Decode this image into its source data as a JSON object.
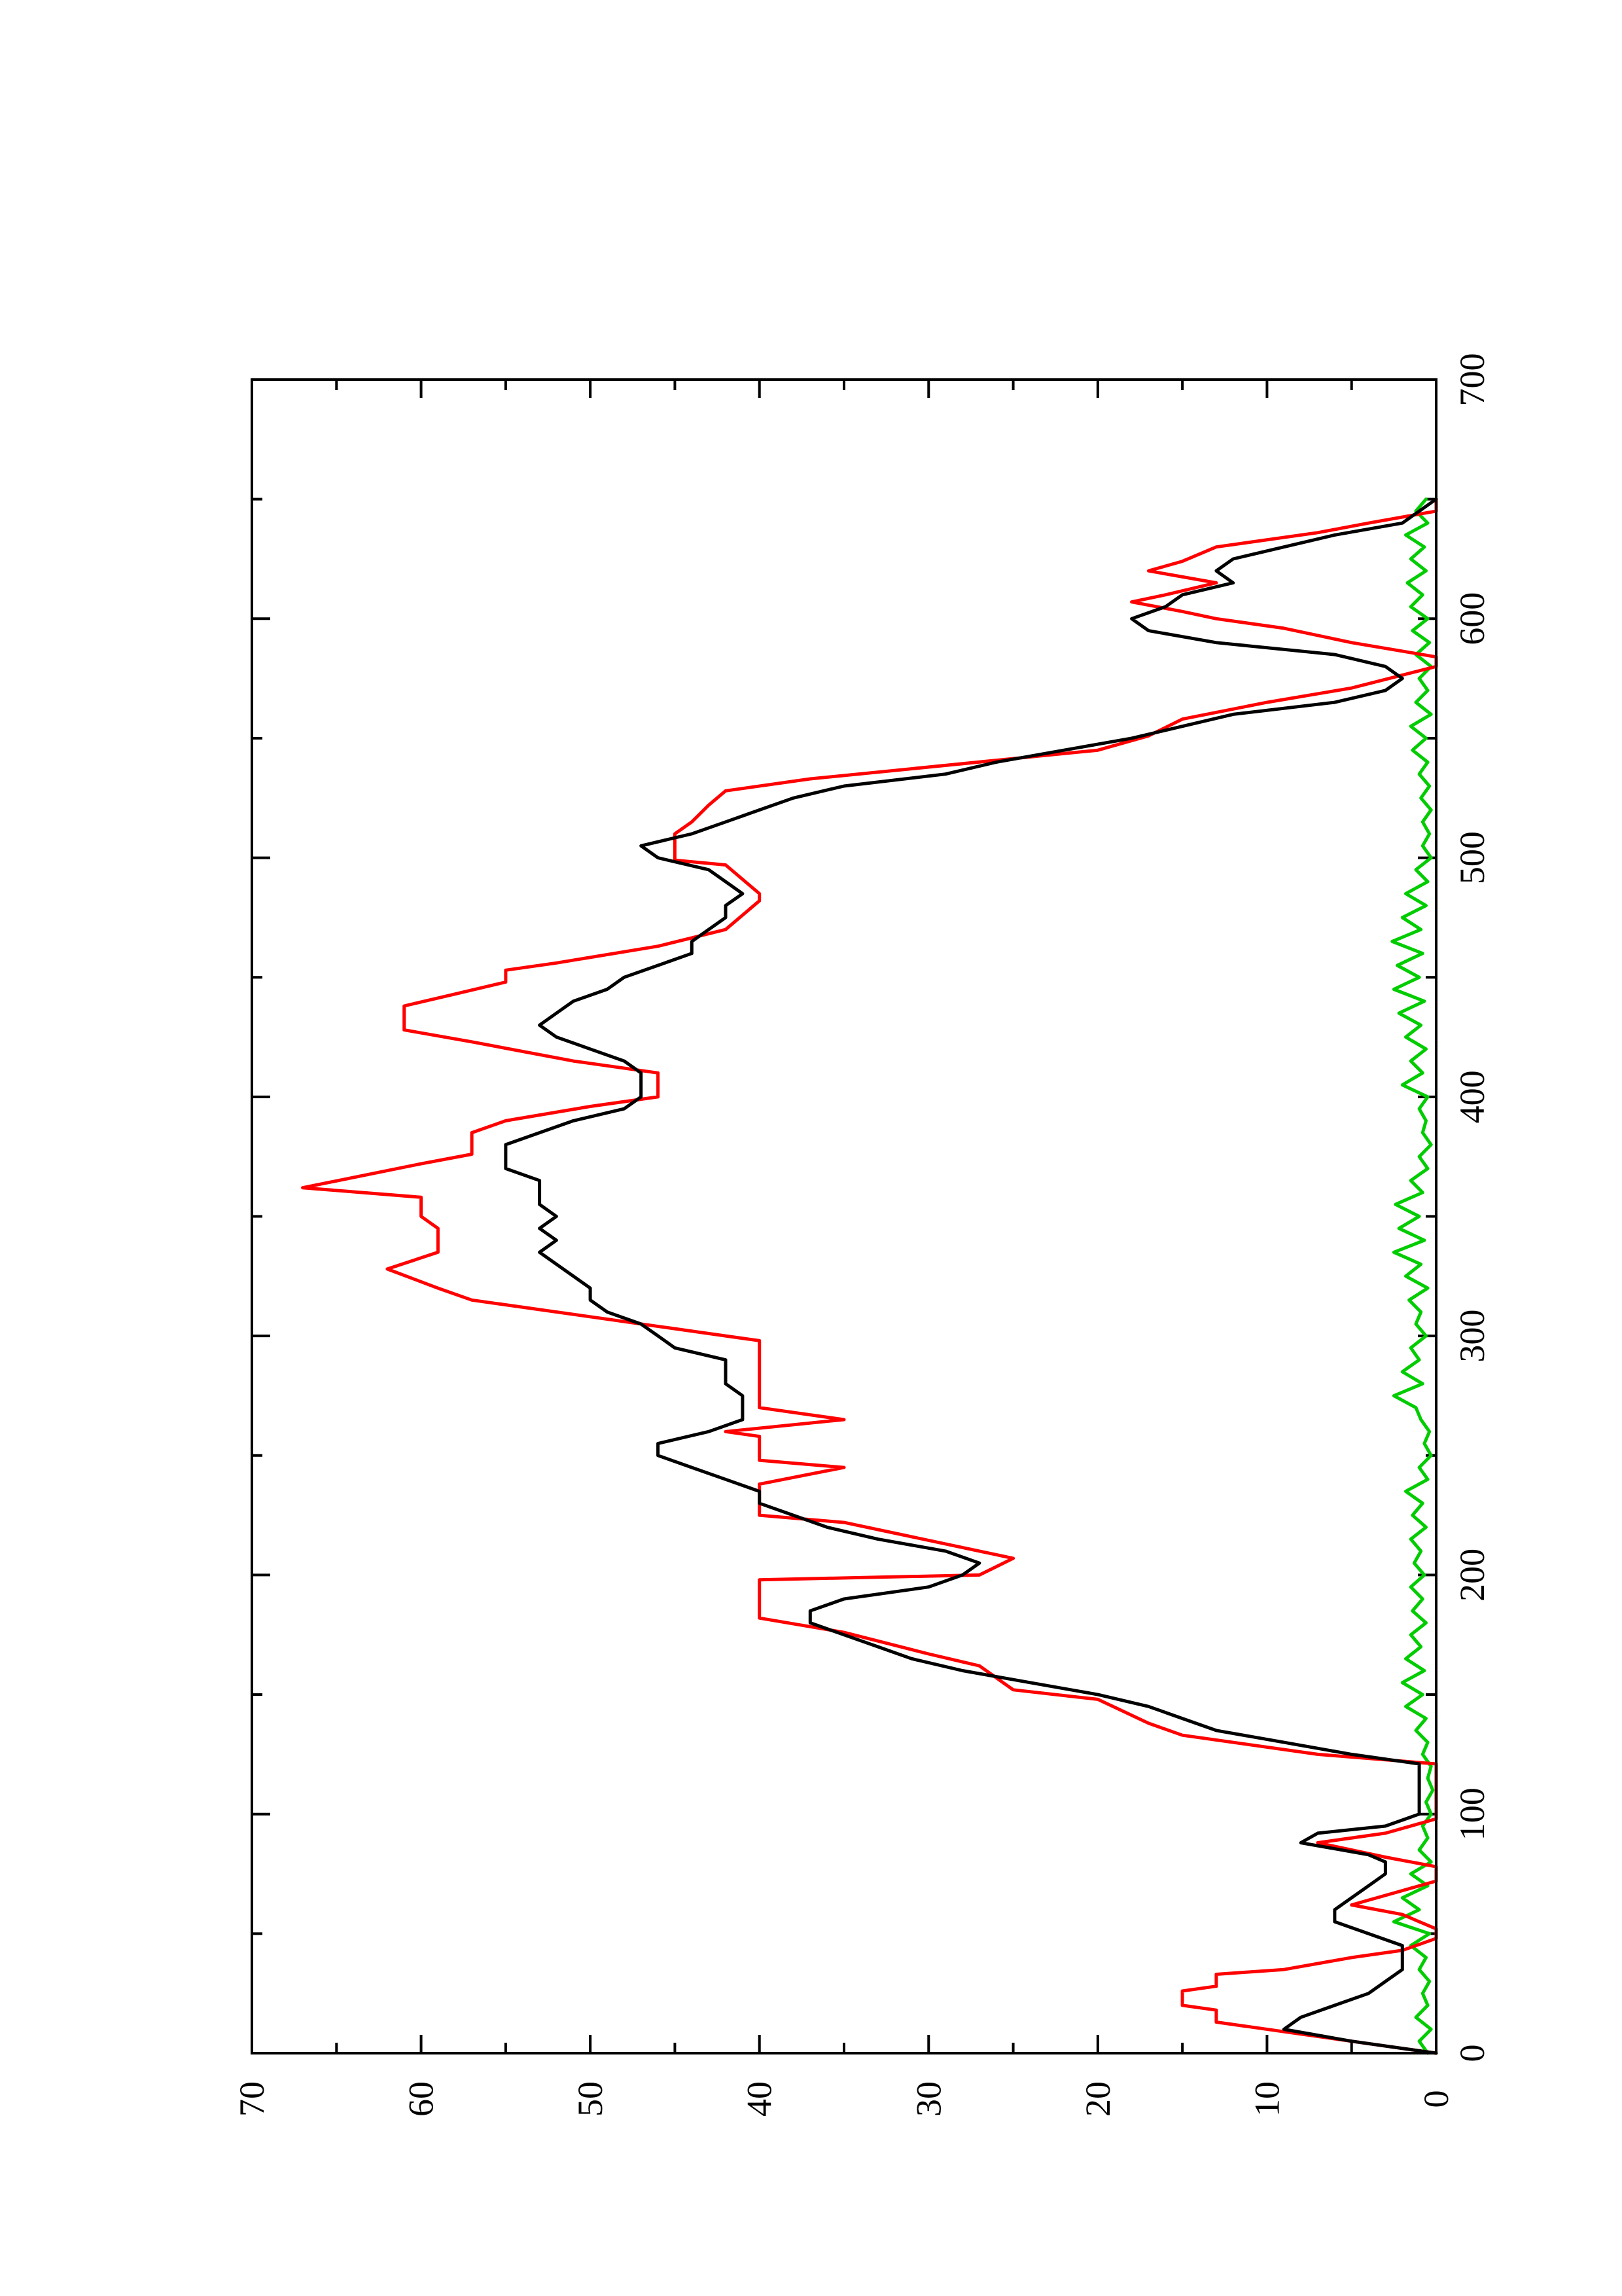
{
  "chart_data": {
    "type": "line",
    "orientation": "rotated-90-ccw",
    "title": "",
    "xlabel": "",
    "ylabel": "",
    "xlim": [
      0,
      700
    ],
    "ylim": [
      0,
      70
    ],
    "x_ticks": [
      0,
      100,
      200,
      300,
      400,
      500,
      600,
      700
    ],
    "x_tick_labels": [
      "0",
      "100",
      "200",
      "300",
      "400",
      "500",
      "600",
      "700"
    ],
    "x_minor_ticks": [
      50,
      150,
      250,
      350,
      450,
      550,
      650
    ],
    "y_ticks": [
      0,
      10,
      20,
      30,
      40,
      50,
      60,
      70
    ],
    "y_tick_labels": [
      "0",
      "10",
      "20",
      "30",
      "40",
      "50",
      "60",
      "70"
    ],
    "y_minor_ticks": [
      5,
      15,
      25,
      35,
      45,
      55,
      65
    ],
    "grid": false,
    "legend": "none",
    "series": [
      {
        "color": "#ff0000",
        "style": "step",
        "x": [
          0,
          8,
          13,
          18,
          20,
          26,
          28,
          33,
          35,
          40,
          43,
          48,
          52,
          58,
          62,
          68,
          72,
          78,
          82,
          88,
          92,
          98,
          100,
          121,
          125,
          133,
          138,
          148,
          152,
          162,
          167,
          176,
          182,
          198,
          200,
          207,
          210,
          222,
          225,
          235,
          238,
          245,
          248,
          258,
          260,
          265,
          270,
          275,
          280,
          295,
          298,
          315,
          320,
          328,
          335,
          345,
          350,
          358,
          362,
          372,
          376,
          385,
          390,
          396,
          400,
          410,
          415,
          423,
          428,
          434,
          438,
          443,
          448,
          453,
          456,
          463,
          470,
          482,
          485,
          497,
          499,
          505,
          510,
          515,
          522,
          528,
          533,
          545,
          551,
          558,
          565,
          571,
          580,
          584,
          590,
          596,
          600,
          603,
          607,
          610,
          615,
          620,
          624,
          630,
          636,
          640,
          645,
          650
        ],
        "y": [
          0,
          8,
          13,
          13,
          15,
          15,
          13,
          13,
          9,
          5,
          2,
          0,
          0,
          2,
          5,
          2,
          0,
          0,
          3,
          7,
          3,
          0,
          0,
          0,
          7,
          15,
          17,
          20,
          25,
          27,
          30,
          35,
          40,
          40,
          27,
          25,
          27,
          35,
          40,
          40,
          40,
          35,
          40,
          40,
          42,
          35,
          40,
          40,
          40,
          40,
          40,
          57,
          59,
          62,
          59,
          59,
          60,
          60,
          67,
          60,
          57,
          57,
          55,
          50,
          46,
          46,
          51,
          57,
          61,
          61,
          61,
          58,
          55,
          55,
          52,
          46,
          42,
          40,
          40,
          42,
          45,
          45,
          45,
          44,
          43,
          42,
          37,
          20,
          17,
          15,
          10,
          5,
          0,
          0,
          5,
          9,
          13,
          15,
          18,
          16,
          13,
          17,
          15,
          13,
          7,
          4,
          0,
          0
        ]
      },
      {
        "color": "#000000",
        "style": "line",
        "x": [
          0,
          5,
          10,
          15,
          20,
          25,
          30,
          35,
          40,
          45,
          50,
          55,
          60,
          65,
          70,
          75,
          80,
          83,
          88,
          92,
          95,
          100,
          110,
          121,
          125,
          130,
          135,
          140,
          145,
          150,
          155,
          160,
          165,
          170,
          175,
          180,
          185,
          190,
          195,
          200,
          205,
          210,
          215,
          220,
          225,
          230,
          235,
          240,
          245,
          250,
          255,
          260,
          265,
          270,
          275,
          280,
          285,
          290,
          295,
          300,
          305,
          310,
          315,
          320,
          325,
          330,
          335,
          340,
          345,
          350,
          355,
          360,
          365,
          370,
          375,
          380,
          385,
          390,
          395,
          400,
          405,
          410,
          415,
          420,
          425,
          430,
          435,
          440,
          445,
          450,
          455,
          460,
          465,
          470,
          475,
          480,
          485,
          490,
          495,
          500,
          505,
          510,
          515,
          520,
          525,
          530,
          535,
          540,
          545,
          550,
          555,
          560,
          565,
          570,
          575,
          580,
          585,
          590,
          595,
          600,
          605,
          610,
          615,
          620,
          625,
          630,
          635,
          640,
          645,
          650
        ],
        "y": [
          0,
          5,
          9,
          8,
          6,
          4,
          3,
          2,
          2,
          2,
          4,
          6,
          6,
          5,
          4,
          3,
          3,
          4,
          8,
          7,
          3,
          1,
          1,
          1,
          5,
          9,
          13,
          15,
          17,
          20,
          24,
          28,
          31,
          33,
          35,
          37,
          37,
          35,
          30,
          28,
          27,
          29,
          33,
          36,
          38,
          40,
          40,
          42,
          44,
          46,
          46,
          43,
          41,
          41,
          41,
          42,
          42,
          42,
          45,
          46,
          47,
          49,
          50,
          50,
          51,
          52,
          53,
          52,
          53,
          52,
          53,
          53,
          53,
          55,
          55,
          55,
          53,
          51,
          48,
          47,
          47,
          47,
          48,
          50,
          52,
          53,
          52,
          51,
          49,
          48,
          46,
          44,
          44,
          43,
          42,
          42,
          41,
          42,
          43,
          46,
          47,
          44,
          42,
          40,
          38,
          35,
          29,
          26,
          22,
          18,
          15,
          12,
          6,
          3,
          2,
          3,
          6,
          13,
          17,
          18,
          16,
          15,
          12,
          13,
          12,
          9,
          6,
          2,
          1,
          0
        ]
      },
      {
        "color": "#00cc00",
        "style": "line",
        "x": [
          0,
          5,
          10,
          15,
          20,
          25,
          30,
          35,
          40,
          45,
          50,
          55,
          60,
          65,
          70,
          75,
          80,
          85,
          90,
          95,
          100,
          105,
          110,
          115,
          120,
          125,
          130,
          135,
          140,
          145,
          150,
          155,
          160,
          165,
          170,
          175,
          180,
          185,
          190,
          195,
          200,
          205,
          210,
          215,
          220,
          225,
          230,
          235,
          240,
          245,
          250,
          255,
          260,
          265,
          270,
          275,
          280,
          285,
          290,
          295,
          300,
          305,
          310,
          315,
          320,
          325,
          330,
          335,
          340,
          345,
          350,
          355,
          360,
          365,
          370,
          375,
          380,
          385,
          390,
          395,
          400,
          405,
          410,
          415,
          420,
          425,
          430,
          435,
          440,
          445,
          450,
          455,
          460,
          465,
          470,
          475,
          480,
          485,
          490,
          495,
          500,
          505,
          510,
          515,
          520,
          525,
          530,
          535,
          540,
          545,
          550,
          555,
          560,
          565,
          570,
          575,
          580,
          585,
          590,
          595,
          600,
          605,
          610,
          615,
          620,
          625,
          630,
          635,
          640,
          645,
          650
        ],
        "y": [
          0.5,
          1,
          0.3,
          1.2,
          0.5,
          0.8,
          0.4,
          1,
          0.6,
          1.5,
          0.4,
          2.5,
          1,
          2,
          0.5,
          1.5,
          0.3,
          1,
          0.5,
          0.8,
          0.3,
          0.6,
          0.2,
          0.5,
          0.3,
          0.8,
          0.5,
          1.2,
          0.6,
          1.8,
          0.8,
          2,
          0.7,
          1.8,
          0.9,
          1.5,
          0.6,
          1.4,
          0.8,
          1.5,
          0.7,
          1.3,
          0.9,
          1.5,
          0.6,
          1.4,
          0.8,
          1.8,
          0.5,
          1,
          0.3,
          0.7,
          0.4,
          0.9,
          1.2,
          2.5,
          0.8,
          2,
          1,
          1.5,
          0.6,
          1.2,
          0.9,
          1.6,
          0.5,
          1.8,
          0.9,
          2.5,
          0.7,
          2.2,
          1,
          2.4,
          0.8,
          1.5,
          0.5,
          1,
          0.3,
          0.8,
          0.6,
          1,
          0.5,
          2,
          0.8,
          1.5,
          0.6,
          1.8,
          0.9,
          2.2,
          0.7,
          2.5,
          1,
          2.3,
          0.8,
          2.6,
          0.9,
          2,
          0.6,
          1.8,
          0.5,
          1.2,
          0.3,
          0.8,
          0.4,
          0.8,
          0.3,
          0.9,
          0.4,
          1,
          0.5,
          1.4,
          0.6,
          1.5,
          0.3,
          1.2,
          0.5,
          1,
          0.3,
          1.2,
          0.4,
          1.4,
          0.5,
          1.5,
          0.8,
          1.7,
          0.6,
          1.5,
          0.7,
          1.8,
          0.5,
          1.2,
          0.6
        ]
      }
    ]
  }
}
